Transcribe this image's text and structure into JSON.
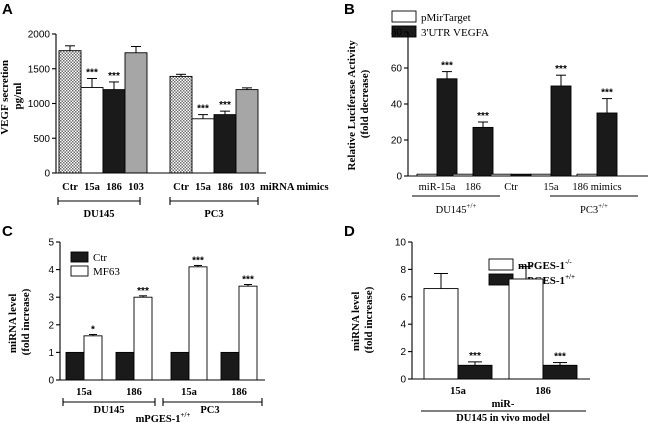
{
  "chart_data": [
    {
      "panel": "A",
      "type": "bar",
      "ylabel": "VEGF secretion pg/ml",
      "ylim": [
        0,
        2000
      ],
      "yticks": [
        0,
        500,
        1000,
        1500,
        2000
      ],
      "xlabel": "miRNA mimics",
      "categories": [
        "Ctr",
        "15a",
        "186",
        "103",
        "Ctr",
        "15a",
        "186",
        "103"
      ],
      "groups": [
        "DU145",
        "PC3"
      ],
      "values": [
        1760,
        1230,
        1200,
        1730,
        1390,
        780,
        840,
        1200
      ],
      "errors": [
        70,
        130,
        110,
        90,
        30,
        60,
        50,
        25
      ],
      "significance": [
        "",
        "***",
        "***",
        "",
        "",
        "***",
        "***",
        ""
      ]
    },
    {
      "panel": "B",
      "type": "bar",
      "ylabel": "Relative Luciferase Activity (fold decrease)",
      "ylim": [
        0,
        80
      ],
      "yticks": [
        0,
        20,
        40,
        60,
        80
      ],
      "categories": [
        "miR-15a",
        "186",
        "Ctr",
        "15a",
        "186 mimics"
      ],
      "groups": [
        "DU145",
        "PC3"
      ],
      "group_superscript": "+/+",
      "series": [
        {
          "name": "pMirTarget",
          "values": [
            1,
            1,
            1,
            1,
            1
          ],
          "errors": [
            0.3,
            0.3,
            0.3,
            0.3,
            0.3
          ]
        },
        {
          "name": "3'UTR VEGFA",
          "values": [
            54,
            27,
            1,
            50,
            35
          ],
          "errors": [
            4,
            3,
            0.3,
            6,
            8
          ],
          "significance": [
            "***",
            "***",
            "",
            "***",
            "***"
          ]
        }
      ],
      "legend_position": "top"
    },
    {
      "panel": "C",
      "type": "bar",
      "ylabel": "miRNA level (fold increase)",
      "ylim": [
        0,
        5
      ],
      "yticks": [
        0,
        1,
        2,
        3,
        4,
        5
      ],
      "categories": [
        "15a",
        "186",
        "15a",
        "186"
      ],
      "groups": [
        "DU145",
        "PC3"
      ],
      "footer": "mPGES-1",
      "footer_superscript": "+/+",
      "series": [
        {
          "name": "Ctr",
          "values": [
            1,
            1,
            1,
            1
          ],
          "errors": [
            0.02,
            0.02,
            0.02,
            0.02
          ]
        },
        {
          "name": "MF63",
          "values": [
            1.6,
            3.0,
            4.1,
            3.4
          ],
          "errors": [
            0.05,
            0.05,
            0.05,
            0.06
          ],
          "significance": [
            "*",
            "***",
            "***",
            "***"
          ]
        }
      ],
      "legend_position": "top-left"
    },
    {
      "panel": "D",
      "type": "bar",
      "ylabel": "miRNA level (fold increase)",
      "ylim": [
        0,
        10
      ],
      "yticks": [
        0,
        2,
        4,
        6,
        8,
        10
      ],
      "categories": [
        "15a",
        "186"
      ],
      "group_label": "miR-",
      "footer": "DU145 in vivo model",
      "series": [
        {
          "name": "mPGES-1",
          "superscript": "-/-",
          "values": [
            6.6,
            7.3
          ],
          "errors": [
            1.1,
            0.9
          ]
        },
        {
          "name": "mPGES-1",
          "superscript": "+/+",
          "values": [
            1.0,
            1.0
          ],
          "errors": [
            0.25,
            0.2
          ],
          "significance": [
            "***",
            "***"
          ]
        }
      ],
      "legend_position": "top"
    }
  ],
  "colors": {
    "black": "#1a1a1a",
    "white": "#ffffff",
    "gray": "#a6a6a6",
    "hatch": "#6e6e6e"
  }
}
